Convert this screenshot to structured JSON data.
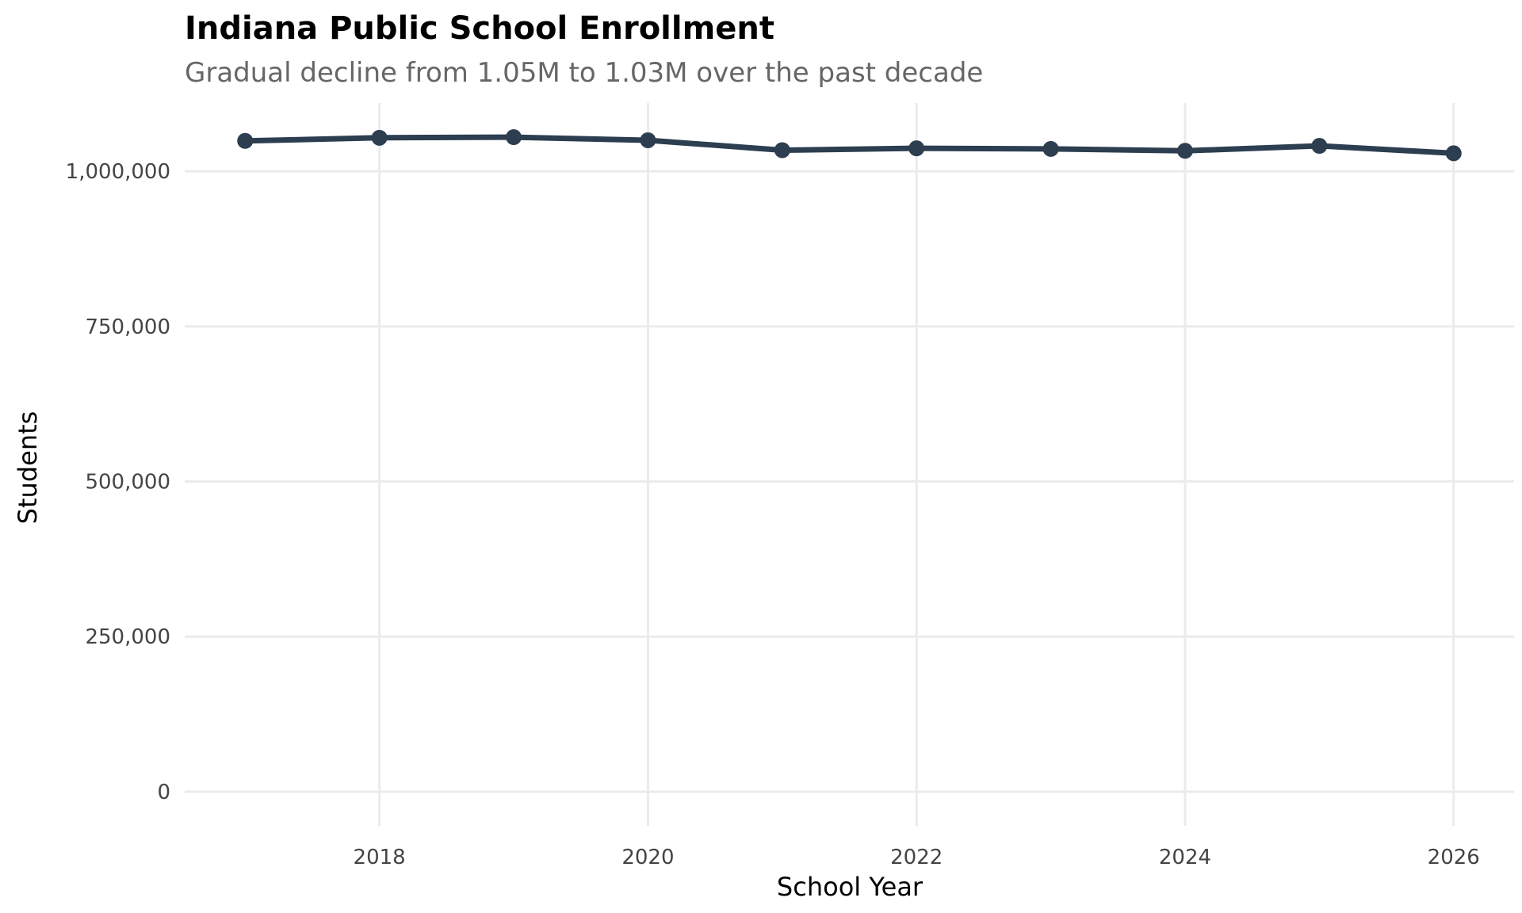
{
  "chart_data": {
    "type": "line",
    "title": "Indiana Public School Enrollment",
    "subtitle": "Gradual decline from 1.05M to 1.03M over the past decade",
    "xlabel": "School Year",
    "ylabel": "Students",
    "x": [
      2017,
      2018,
      2019,
      2020,
      2021,
      2022,
      2023,
      2024,
      2025,
      2026
    ],
    "series": [
      {
        "values": [
          1049000,
          1054000,
          1055000,
          1050000,
          1034000,
          1037000,
          1036000,
          1033000,
          1041000,
          1029000
        ]
      }
    ],
    "x_ticks": [
      2018,
      2020,
      2022,
      2024,
      2026
    ],
    "x_tick_labels": [
      "2018",
      "2020",
      "2022",
      "2024",
      "2026"
    ],
    "y_ticks": [
      0,
      250000,
      500000,
      750000,
      1000000
    ],
    "y_tick_labels": [
      "0",
      "250,000",
      "500,000",
      "750,000",
      "1,000,000"
    ],
    "xlim": [
      2016.55,
      2026.45
    ],
    "ylim": [
      -55000,
      1110000
    ],
    "grid": true,
    "legend": "none",
    "line_color": "#2c3e50"
  }
}
